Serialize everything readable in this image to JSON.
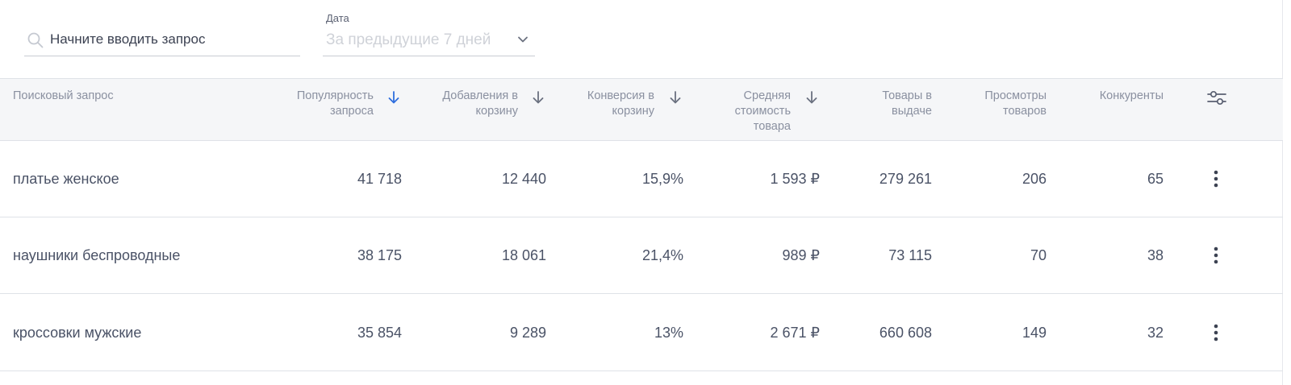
{
  "filters": {
    "search_placeholder": "Начните вводить запрос",
    "date_label": "Дата",
    "date_value": "За предыдущие 7 дней"
  },
  "table": {
    "headers": {
      "query": "Поисковый запрос",
      "popularity": [
        "Популярность",
        "запроса"
      ],
      "add_to_cart": [
        "Добавления в",
        "корзину"
      ],
      "conversion": [
        "Конверсия в",
        "корзину"
      ],
      "avg_price": [
        "Средняя",
        "стоимость",
        "товара"
      ],
      "products": [
        "Товары в",
        "выдаче"
      ],
      "views": [
        "Просмотры",
        "товаров"
      ],
      "competitors": "Конкуренты"
    },
    "rows": [
      {
        "query": "платье женское",
        "popularity": "41 718",
        "add_to_cart": "12 440",
        "conversion": "15,9%",
        "avg_price": "1 593 ₽",
        "products": "279 261",
        "views": "206",
        "competitors": "65"
      },
      {
        "query": "наушники беспроводные",
        "popularity": "38 175",
        "add_to_cart": "18 061",
        "conversion": "21,4%",
        "avg_price": "989 ₽",
        "products": "73 115",
        "views": "70",
        "competitors": "38"
      },
      {
        "query": "кроссовки мужские",
        "popularity": "35 854",
        "add_to_cart": "9 289",
        "conversion": "13%",
        "avg_price": "2 671 ₽",
        "products": "660 608",
        "views": "149",
        "competitors": "32"
      }
    ]
  },
  "icons": {
    "search": "search-icon",
    "chevron": "chevron-down-icon",
    "sort": "arrow-down-icon",
    "settings": "sliders-icon",
    "row_menu": "kebab-menu-icon"
  },
  "colors": {
    "accent": "#2f6fde",
    "sort_inactive": "#6b7180",
    "header_bg": "#f5f6f8",
    "text": "#4a5266"
  }
}
